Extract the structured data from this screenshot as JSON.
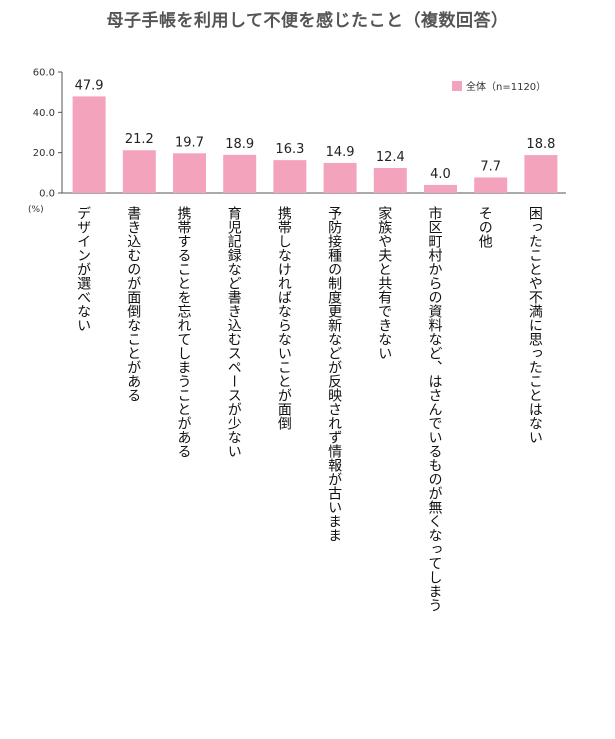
{
  "chart_data": {
    "type": "bar",
    "title": "母子手帳を利用して不便を感じたこと（複数回答）",
    "unit": "(%)",
    "ylim": [
      0,
      60
    ],
    "yticks": [
      "0.0",
      "20.0",
      "40.0",
      "60.0"
    ],
    "grid": false,
    "legend_position": "top-right",
    "series": [
      {
        "name": "全体（n=1120）",
        "color": "#f4a3bd",
        "values": [
          47.9,
          21.2,
          19.7,
          18.9,
          16.3,
          14.9,
          12.4,
          4.0,
          7.7,
          18.8
        ],
        "value_labels": [
          "47.9",
          "21.2",
          "19.7",
          "18.9",
          "16.3",
          "14.9",
          "12.4",
          "4.0",
          "7.7",
          "18.8"
        ]
      }
    ],
    "categories": [
      "デザインが選べない",
      "書き込むのが面倒なことがある",
      "携帯することを忘れてしまうことがある",
      "育児記録など書き込むスペースが少ない",
      "携帯しなければならないことが面倒",
      "予防接種の制度更新などが反映されず情報が古いまま",
      "家族や夫と共有できない",
      "市区町村からの資料など、はさんでいるものが無くなってしまう",
      "その他",
      "困ったことや不満に思ったことはない"
    ]
  }
}
